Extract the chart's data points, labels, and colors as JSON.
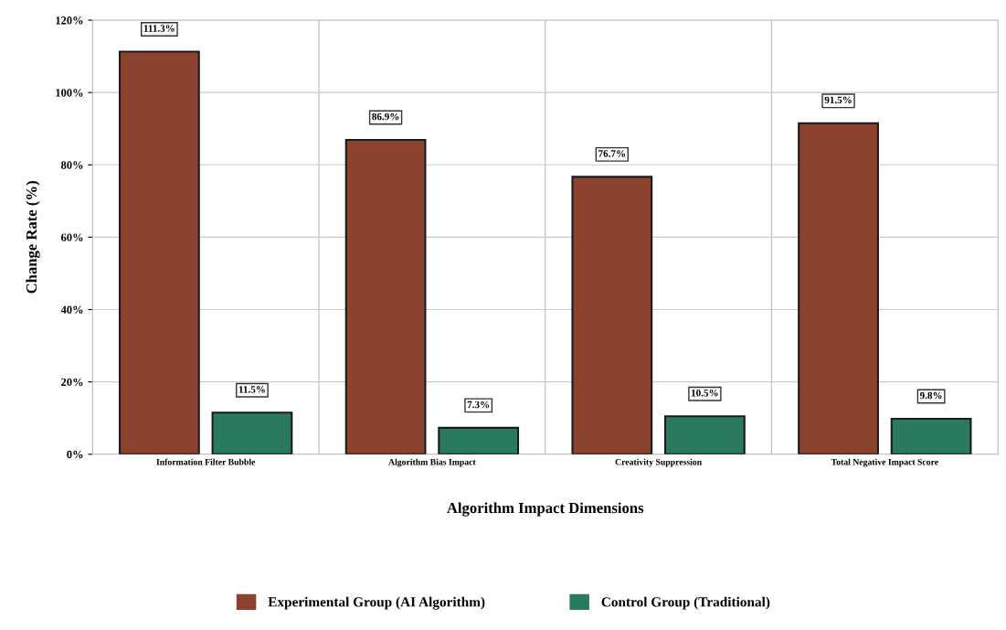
{
  "chart_data": {
    "type": "bar",
    "xlabel": "Algorithm Impact Dimensions",
    "ylabel": "Change Rate (%)",
    "categories": [
      "Information Filter Bubble",
      "Algorithm Bias Impact",
      "Creativity Suppression",
      "Total Negative Impact Score"
    ],
    "series": [
      {
        "name": "Experimental Group (AI Algorithm)",
        "color": "#8b4330",
        "values": [
          111.3,
          86.9,
          76.7,
          91.5
        ],
        "value_labels": [
          "111.3%",
          "86.9%",
          "76.7%",
          "91.5%"
        ]
      },
      {
        "name": "Control Group (Traditional)",
        "color": "#2a7a5e",
        "values": [
          11.5,
          7.3,
          10.5,
          9.8
        ],
        "value_labels": [
          "11.5%",
          "7.3%",
          "10.5%",
          "9.8%"
        ]
      }
    ],
    "ylim": [
      0,
      120
    ],
    "yticks": [
      {
        "value": 0,
        "label": "0%"
      },
      {
        "value": 20,
        "label": "20%"
      },
      {
        "value": 40,
        "label": "40%"
      },
      {
        "value": 60,
        "label": "60%"
      },
      {
        "value": 80,
        "label": "80%"
      },
      {
        "value": 100,
        "label": "100%"
      },
      {
        "value": 120,
        "label": "120%"
      }
    ],
    "grid": true,
    "legend": "bottom"
  }
}
